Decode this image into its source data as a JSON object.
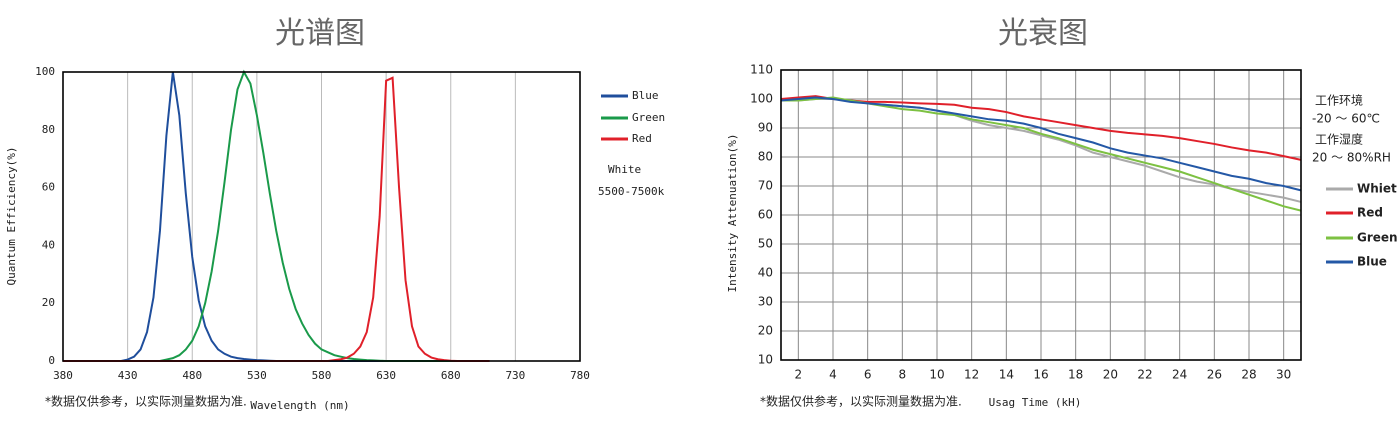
{
  "chart_data": [
    {
      "type": "line",
      "title": "光谱图",
      "x_label": "Wavelength  (nm)",
      "y_label": "Quantum  Efficiency(%)",
      "xlim": [
        380,
        780
      ],
      "xticks": [
        380,
        430,
        480,
        530,
        580,
        630,
        680,
        730,
        780
      ],
      "ylim": [
        0,
        100
      ],
      "yticks": [
        0,
        20,
        40,
        60,
        80,
        100
      ],
      "grid": "x",
      "legend_position": "right",
      "x": [
        380,
        385,
        390,
        395,
        400,
        405,
        410,
        415,
        420,
        425,
        430,
        435,
        440,
        445,
        450,
        455,
        460,
        465,
        470,
        475,
        480,
        485,
        490,
        495,
        500,
        505,
        510,
        515,
        520,
        525,
        530,
        535,
        540,
        545,
        550,
        555,
        560,
        565,
        570,
        575,
        580,
        585,
        590,
        595,
        600,
        605,
        610,
        615,
        620,
        625,
        630,
        635,
        640,
        645,
        650,
        655,
        660,
        665,
        670,
        675,
        680,
        685,
        690,
        695,
        700,
        705,
        710
      ],
      "series": [
        {
          "name": "Blue",
          "color": "#1f4e9c",
          "values": [
            0,
            0,
            0,
            0,
            0,
            0,
            0,
            0,
            0,
            0,
            0.5,
            1.5,
            4,
            10,
            22,
            45,
            78,
            100,
            85,
            58,
            36,
            21,
            12,
            7,
            4,
            2.5,
            1.5,
            1,
            0.7,
            0.5,
            0.3,
            0.2,
            0.1,
            0,
            0,
            0,
            0,
            0,
            0,
            0,
            0,
            0,
            0,
            0,
            0,
            0,
            0,
            0,
            0,
            0,
            0,
            0,
            0,
            0,
            0,
            0,
            0,
            0,
            0,
            0,
            0,
            0,
            0,
            0,
            0,
            0,
            0
          ]
        },
        {
          "name": "Green",
          "color": "#1a9a4a",
          "values": [
            0,
            0,
            0,
            0,
            0,
            0,
            0,
            0,
            0,
            0,
            0,
            0,
            0,
            0,
            0,
            0,
            0.5,
            1,
            2,
            4,
            7,
            12,
            20,
            31,
            45,
            62,
            80,
            94,
            100,
            96,
            85,
            72,
            58,
            45,
            34,
            25,
            18,
            13,
            9,
            6,
            4,
            3,
            2,
            1.5,
            1,
            0.7,
            0.5,
            0.3,
            0.2,
            0.1,
            0,
            0,
            0,
            0,
            0,
            0,
            0,
            0,
            0,
            0,
            0,
            0,
            0,
            0,
            0,
            0,
            0
          ]
        },
        {
          "name": "Red",
          "color": "#e0202a",
          "values": [
            0,
            0,
            0,
            0,
            0,
            0,
            0,
            0,
            0,
            0,
            0,
            0,
            0,
            0,
            0,
            0,
            0,
            0,
            0,
            0,
            0,
            0,
            0,
            0,
            0,
            0,
            0,
            0,
            0,
            0,
            0,
            0,
            0,
            0,
            0,
            0,
            0,
            0,
            0,
            0,
            0,
            0,
            0.3,
            0.6,
            1.2,
            2.5,
            5,
            10,
            22,
            50,
            97,
            98,
            60,
            28,
            12,
            5,
            2.5,
            1.2,
            0.6,
            0.3,
            0.1,
            0,
            0,
            0,
            0,
            0,
            0
          ]
        }
      ],
      "annotations": [
        "White",
        "5500-7500k"
      ],
      "footnote": "*数据仅供参考，以实际测量数据为准."
    },
    {
      "type": "line",
      "title": "光衰图",
      "x_label": "Usag Time (kH)",
      "y_label": "Intensity Attenuation(%)",
      "xlim": [
        1,
        31
      ],
      "xticks": [
        2,
        4,
        6,
        8,
        10,
        12,
        14,
        16,
        18,
        20,
        22,
        24,
        26,
        28,
        30
      ],
      "ylim": [
        10,
        110
      ],
      "yticks": [
        10,
        20,
        30,
        40,
        50,
        60,
        70,
        80,
        90,
        100,
        110
      ],
      "grid": "both",
      "legend_position": "right",
      "x": [
        1,
        2,
        3,
        4,
        5,
        6,
        7,
        8,
        9,
        10,
        11,
        12,
        13,
        14,
        15,
        16,
        17,
        18,
        19,
        20,
        21,
        22,
        23,
        24,
        25,
        26,
        27,
        28,
        29,
        30,
        31
      ],
      "series": [
        {
          "name": "Whiet",
          "color": "#aaaaaa",
          "values": [
            99.5,
            99.5,
            100,
            100,
            99.5,
            98.5,
            98,
            97.5,
            97,
            96,
            94.5,
            92.5,
            91,
            90,
            89,
            87.5,
            86,
            84,
            81.5,
            80,
            78.5,
            77,
            75,
            73,
            71.5,
            70.5,
            69,
            68,
            67,
            66,
            64.5
          ]
        },
        {
          "name": "Red",
          "color": "#e0202a",
          "values": [
            100,
            100.5,
            101,
            100,
            99.5,
            99,
            99,
            98.8,
            98.5,
            98.3,
            98,
            97,
            96.5,
            95.5,
            94,
            93,
            92,
            91,
            90,
            89,
            88.3,
            87.8,
            87.3,
            86.5,
            85.5,
            84.5,
            83.3,
            82.3,
            81.5,
            80.3,
            79
          ]
        },
        {
          "name": "Green",
          "color": "#7dc142",
          "values": [
            99.5,
            99.5,
            100,
            100.5,
            99.5,
            98.5,
            97.5,
            96.5,
            96,
            95,
            94.5,
            93,
            92,
            91,
            90,
            88,
            86.5,
            84.5,
            82.5,
            81,
            79.5,
            78,
            76.5,
            75,
            73,
            71,
            69,
            67,
            65,
            63,
            61.5
          ]
        },
        {
          "name": "Blue",
          "color": "#2458a6",
          "values": [
            99.5,
            100,
            100.5,
            100,
            99,
            98.5,
            98,
            97.5,
            97,
            96,
            95,
            94,
            93,
            92.5,
            91.5,
            90,
            88,
            86.5,
            85,
            83,
            81.5,
            80.5,
            79.5,
            78,
            76.5,
            75,
            73.5,
            72.5,
            71,
            70,
            68.5
          ]
        }
      ],
      "annotations": [
        "工作环境",
        "-20 ～ 60℃",
        "工作湿度",
        "20 ～ 80%RH"
      ],
      "footnote": "*数据仅供参考，以实际测量数据为准."
    }
  ]
}
